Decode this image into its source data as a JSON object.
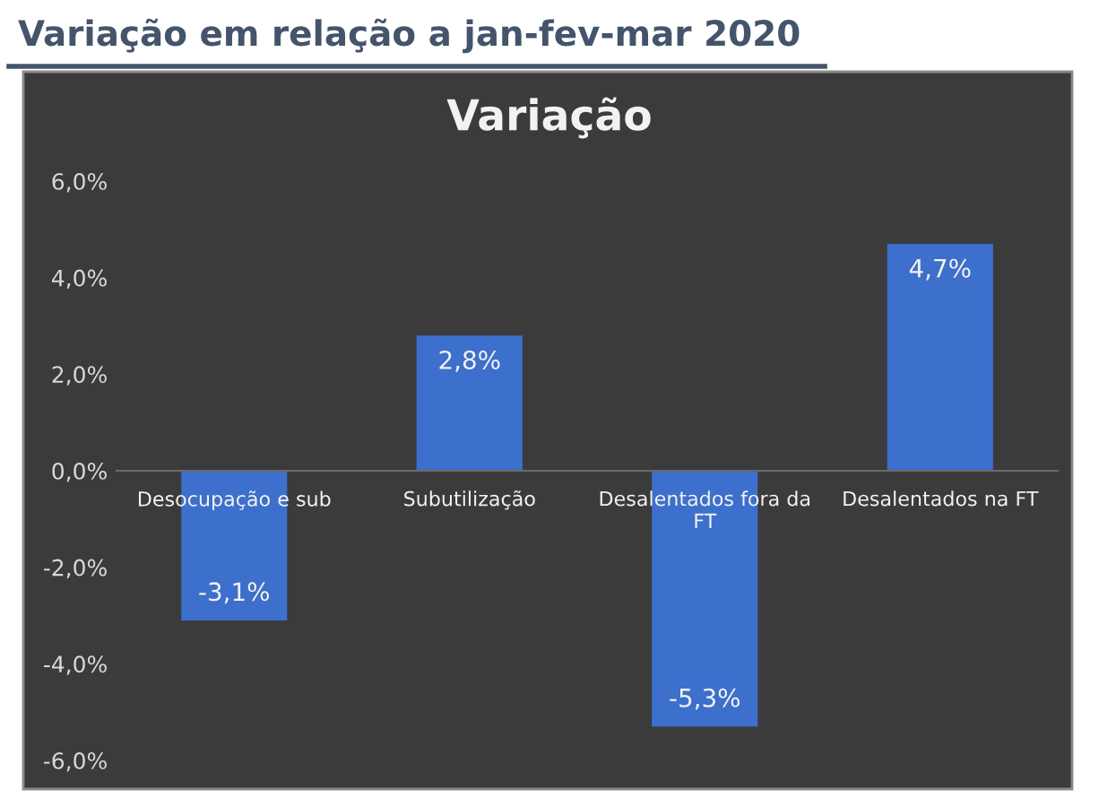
{
  "chart_data": {
    "type": "bar",
    "title": "Variação em relação a jan-fev-mar 2020",
    "subtitle": "Variação",
    "categories": [
      "Desocupação e sub",
      "Subutilização",
      "Desalentados fora da FT",
      "Desalentados na FT"
    ],
    "values": [
      -3.1,
      2.8,
      -5.3,
      4.7
    ],
    "color": "#3d6fcc",
    "value_labels": [
      "-3,1%",
      "2,8%",
      "-5,3%",
      "4,7%"
    ],
    "ylim": [
      -6,
      6
    ],
    "yticks": [
      {
        "value": -6,
        "label": "-6,0%"
      },
      {
        "value": -4,
        "label": "-4,0%"
      },
      {
        "value": -2,
        "label": "-2,0%"
      },
      {
        "value": 0,
        "label": "0,0%"
      },
      {
        "value": 2,
        "label": "2,0%"
      },
      {
        "value": 4,
        "label": "4,0%"
      },
      {
        "value": 6,
        "label": "6,0%"
      }
    ],
    "grid": false,
    "legend": false
  }
}
